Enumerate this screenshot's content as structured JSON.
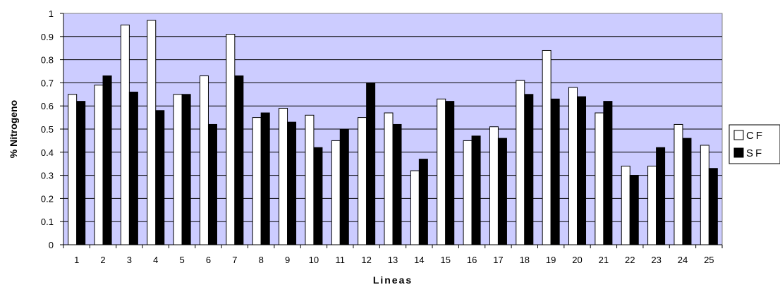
{
  "chart_data": {
    "type": "bar",
    "title": "",
    "xlabel": "Lineas",
    "ylabel": "% Nitrogeno",
    "ylim": [
      0,
      1
    ],
    "yticks": [
      "0",
      "0.1",
      "0.2",
      "0.3",
      "0.4",
      "0.5",
      "0.6",
      "0.7",
      "0.8",
      "0.9",
      "1"
    ],
    "categories": [
      "1",
      "2",
      "3",
      "4",
      "5",
      "6",
      "7",
      "8",
      "9",
      "10",
      "11",
      "12",
      "13",
      "14",
      "15",
      "16",
      "17",
      "18",
      "19",
      "20",
      "21",
      "22",
      "23",
      "24",
      "25"
    ],
    "series": [
      {
        "name": "CF",
        "color": "#ffffff",
        "values": [
          0.65,
          0.69,
          0.95,
          0.97,
          0.65,
          0.73,
          0.91,
          0.55,
          0.59,
          0.56,
          0.45,
          0.55,
          0.57,
          0.32,
          0.63,
          0.45,
          0.51,
          0.71,
          0.84,
          0.68,
          0.57,
          0.34,
          0.34,
          0.52,
          0.43
        ]
      },
      {
        "name": "SF",
        "color": "#000000",
        "values": [
          0.62,
          0.73,
          0.66,
          0.58,
          0.65,
          0.52,
          0.73,
          0.57,
          0.53,
          0.42,
          0.5,
          0.7,
          0.52,
          0.37,
          0.62,
          0.47,
          0.46,
          0.65,
          0.63,
          0.64,
          0.62,
          0.3,
          0.42,
          0.46,
          0.33
        ]
      }
    ],
    "grid": true,
    "plot_background": "#ccccff",
    "legend_position": "right"
  }
}
